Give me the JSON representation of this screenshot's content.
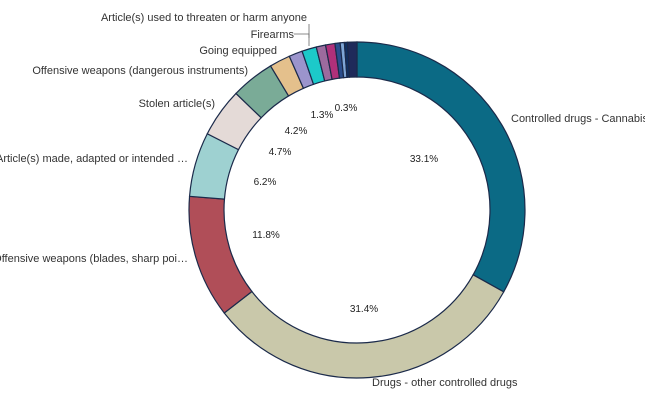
{
  "chart_data": {
    "type": "pie",
    "variant": "donut",
    "title": "",
    "slices": [
      {
        "name": "Controlled drugs - Cannabis",
        "value": 33.1,
        "label": "33.1%",
        "color": "#0b6a85"
      },
      {
        "name": "Drugs - other controlled drugs",
        "value": 31.4,
        "label": "31.4%",
        "color": "#c9c8aa"
      },
      {
        "name": "Offensive weapons (blades, sharp poi…",
        "value": 11.8,
        "label": "11.8%",
        "color": "#b04e58"
      },
      {
        "name": "Article(s) made, adapted or intended …",
        "value": 6.2,
        "label": "6.2%",
        "color": "#9ed1d1"
      },
      {
        "name": "Stolen article(s)",
        "value": 4.7,
        "label": "4.7%",
        "color": "#e4dad7"
      },
      {
        "name": "Offensive weapons (dangerous instruments)",
        "value": 4.2,
        "label": "4.2%",
        "color": "#7aab97"
      },
      {
        "name": "Going equipped",
        "value": 2.0,
        "label": "",
        "color": "#e4c08c"
      },
      {
        "name": "",
        "value": 1.3,
        "label": "1.3%",
        "color": "#9b94cc"
      },
      {
        "name": "Firearms",
        "value": 1.4,
        "label": "",
        "color": "#1cc9c9"
      },
      {
        "name": "Article(s) used to threaten or harm anyone",
        "value": 0.9,
        "label": "",
        "color": "#9c6b9e"
      },
      {
        "name": "",
        "value": 0.9,
        "label": "",
        "color": "#b0307a"
      },
      {
        "name": "",
        "value": 0.5,
        "label": "",
        "color": "#2a4d8c"
      },
      {
        "name": "",
        "value": 0.4,
        "label": "",
        "color": "#7fa6d6"
      },
      {
        "name": "",
        "value": 0.3,
        "label": "0.3%",
        "color": "#103063"
      },
      {
        "name": "",
        "value": 0.9,
        "label": "",
        "color": "#1f2a5a"
      }
    ]
  }
}
